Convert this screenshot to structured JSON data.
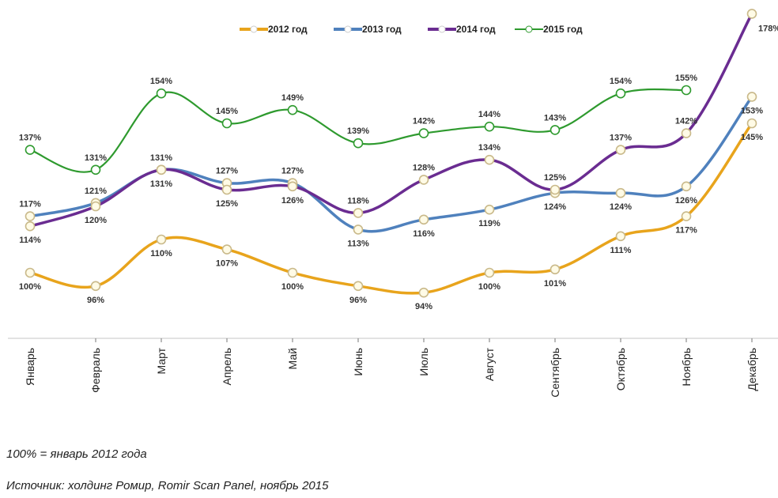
{
  "chart_data": {
    "type": "line",
    "title": "",
    "xlabel": "",
    "ylabel": "",
    "categories": [
      "Январь",
      "Февраль",
      "Март",
      "Апрель",
      "Май",
      "Июнь",
      "Июль",
      "Август",
      "Сентябрь",
      "Октябрь",
      "Ноябрь",
      "Декабрь"
    ],
    "ylim": [
      85,
      180
    ],
    "grid": false,
    "legend": {
      "position": "top-center"
    },
    "series": [
      {
        "name": "2012 год",
        "color": "#e8a41c",
        "values": [
          100,
          96,
          110,
          107,
          100,
          96,
          94,
          100,
          101,
          111,
          117,
          145
        ],
        "labels": [
          "100%",
          "96%",
          "110%",
          "107%",
          "100%",
          "96%",
          "94%",
          "100%",
          "101%",
          "111%",
          "117%",
          "145%"
        ]
      },
      {
        "name": "2013 год",
        "color": "#4f81bd",
        "values": [
          117,
          121,
          131,
          127,
          127,
          113,
          116,
          119,
          124,
          124,
          126,
          153
        ],
        "labels": [
          "117%",
          "121%",
          "131%",
          "127%",
          "127%",
          "113%",
          "116%",
          "119%",
          "124%",
          "124%",
          "126%",
          "153%"
        ]
      },
      {
        "name": "2014 год",
        "color": "#6a2c91",
        "values": [
          114,
          120,
          131,
          125,
          126,
          118,
          128,
          134,
          125,
          137,
          142,
          178
        ],
        "labels": [
          "114%",
          "120%",
          "131%",
          "125%",
          "126%",
          "118%",
          "128%",
          "134%",
          "125%",
          "137%",
          "142%",
          "178%"
        ]
      },
      {
        "name": "2015 год",
        "color": "#2e9a2e",
        "values": [
          137,
          131,
          154,
          145,
          149,
          139,
          142,
          144,
          143,
          154,
          155,
          null
        ],
        "labels": [
          "137%",
          "131%",
          "154%",
          "145%",
          "149%",
          "139%",
          "142%",
          "144%",
          "143%",
          "154%",
          "155%",
          null
        ]
      }
    ]
  },
  "notes": {
    "baseline": "100% = январь 2012 года",
    "source": "Источник: холдинг Ромир, Romir Scan Panel, ноябрь 2015"
  }
}
